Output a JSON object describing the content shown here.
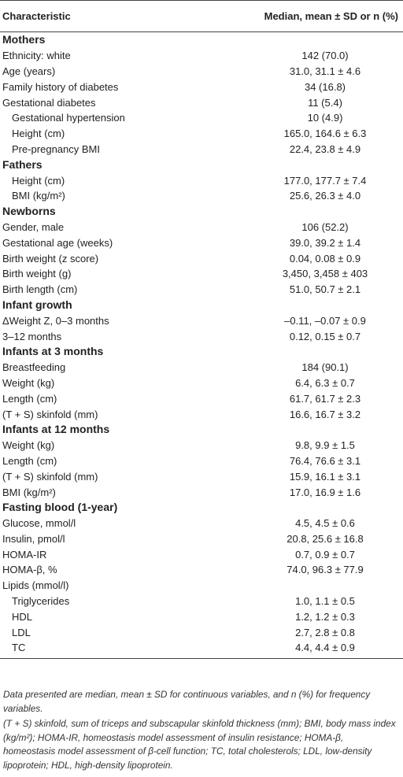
{
  "header": {
    "characteristic": "Characteristic",
    "value": "Median, mean ± SD or n (%)"
  },
  "sections": [
    {
      "title": "Mothers",
      "rows": [
        {
          "label": "Ethnicity: white",
          "value": "142 (70.0)"
        },
        {
          "label": "Age (years)",
          "value": "31.0, 31.1 ± 4.6"
        },
        {
          "label": "Family history of diabetes",
          "value": "34 (16.8)"
        },
        {
          "label": "Gestational diabetes",
          "value": "11 (5.4)"
        },
        {
          "label": "Gestational hypertension",
          "value": "10 (4.9)",
          "indent": 1
        },
        {
          "label": "Height (cm)",
          "value": "165.0, 164.6 ± 6.3",
          "indent": 1
        },
        {
          "label": "Pre-pregnancy BMI",
          "value": "22.4, 23.8 ± 4.9",
          "indent": 1
        }
      ]
    },
    {
      "title": "Fathers",
      "rows": [
        {
          "label": "Height (cm)",
          "value": "177.0, 177.7 ± 7.4",
          "indent": 1
        },
        {
          "label": "BMI (kg/m²)",
          "value": "25.6, 26.3 ± 4.0",
          "indent": 1
        }
      ]
    },
    {
      "title": "Newborns",
      "rows": [
        {
          "label": "Gender, male",
          "value": "106 (52.2)"
        },
        {
          "label": "Gestational age (weeks)",
          "value": "39.0, 39.2 ± 1.4"
        },
        {
          "label": "Birth weight (z score)",
          "value": "0.04, 0.08 ± 0.9"
        },
        {
          "label": "Birth weight (g)",
          "value": "3,450, 3,458 ± 403"
        },
        {
          "label": "Birth length (cm)",
          "value": "51.0, 50.7 ± 2.1"
        }
      ]
    },
    {
      "title": "Infant growth",
      "rows": [
        {
          "label": "ΔWeight Z, 0–3 months",
          "value": "–0.11, –0.07 ± 0.9"
        },
        {
          "label": "3–12 months",
          "value": "0.12, 0.15 ± 0.7"
        }
      ]
    },
    {
      "title": "Infants at 3 months",
      "rows": [
        {
          "label": "Breastfeeding",
          "value": "184 (90.1)"
        },
        {
          "label": "Weight (kg)",
          "value": "6.4, 6.3 ± 0.7"
        },
        {
          "label": "Length (cm)",
          "value": "61.7, 61.7 ± 2.3"
        },
        {
          "label": "(T + S) skinfold (mm)",
          "value": "16.6, 16.7 ± 3.2"
        }
      ]
    },
    {
      "title": "Infants at 12 months",
      "rows": [
        {
          "label": "Weight (kg)",
          "value": "9.8, 9.9 ± 1.5"
        },
        {
          "label": "Length (cm)",
          "value": "76.4, 76.6 ± 3.1"
        },
        {
          "label": "(T + S) skinfold (mm)",
          "value": "15.9, 16.1 ± 3.1"
        },
        {
          "label": "BMI (kg/m²)",
          "value": "17.0, 16.9 ± 1.6"
        }
      ]
    },
    {
      "title": "Fasting blood (1-year)",
      "rows": [
        {
          "label": "Glucose, mmol/l",
          "value": "4.5, 4.5 ± 0.6"
        },
        {
          "label": "Insulin, pmol/l",
          "value": "20.8, 25.6 ± 16.8"
        },
        {
          "label": "HOMA-IR",
          "value": "0.7, 0.9 ± 0.7"
        },
        {
          "label": "HOMA-β, %",
          "value": "74.0, 96.3 ± 77.9"
        },
        {
          "label": "Lipids (mmol/l)",
          "value": ""
        },
        {
          "label": "Triglycerides",
          "value": "1.0, 1.1 ± 0.5",
          "indent": 1
        },
        {
          "label": "HDL",
          "value": "1.2, 1.2 ± 0.3",
          "indent": 1
        },
        {
          "label": "LDL",
          "value": "2.7, 2.8 ± 0.8",
          "indent": 1
        },
        {
          "label": "TC",
          "value": "4.4, 4.4 ± 0.9",
          "indent": 1
        }
      ]
    }
  ],
  "notes": [
    "Data presented are median, mean ± SD for continuous variables, and n (%) for frequency variables.",
    "(T + S) skinfold, sum of triceps and subscapular skinfold thickness (mm); BMI, body mass index (kg/m²); HOMA-IR, homeostasis model assessment of insulin resistance; HOMA-β, homeostasis model assessment of β-cell function; TC, total cholesterols; LDL, low-density lipoprotein; HDL, high-density lipoprotein."
  ]
}
